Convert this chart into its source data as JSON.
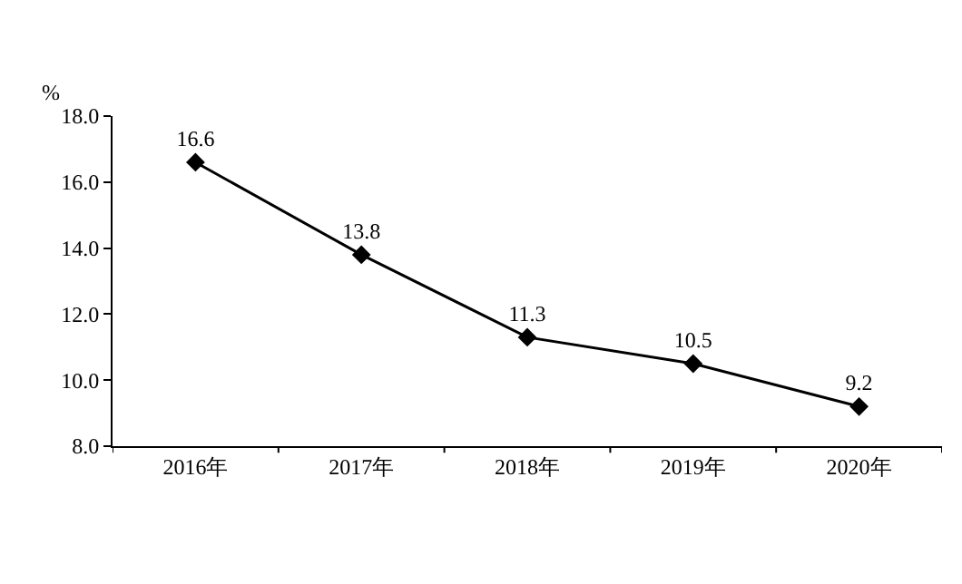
{
  "chart_data": {
    "type": "line",
    "ylabel": "%",
    "categories": [
      "2016年",
      "2017年",
      "2018年",
      "2019年",
      "2020年"
    ],
    "series": [
      {
        "color": "#000000",
        "values": [
          16.6,
          13.8,
          11.3,
          10.5,
          9.2
        ]
      }
    ],
    "ylim": [
      8,
      18
    ],
    "yticks": [
      {
        "value": 8,
        "label": "8.0"
      },
      {
        "value": 10,
        "label": "10.0"
      },
      {
        "value": 12,
        "label": "12.0"
      },
      {
        "value": 14,
        "label": "14.0"
      },
      {
        "value": 16,
        "label": "16.0"
      },
      {
        "value": 18,
        "label": "18.0"
      }
    ],
    "data_labels": true,
    "marker": "diamond",
    "line_style": "solid"
  }
}
